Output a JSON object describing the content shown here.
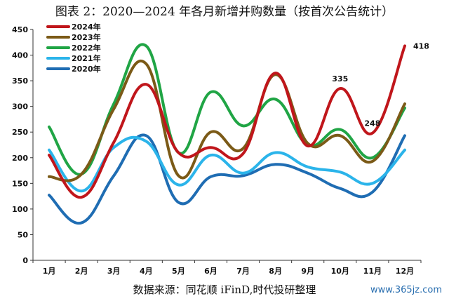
{
  "title": "图表 2：2020—2024 年各月新增并购数量（按首次公告统计）",
  "source": "数据来源：同花顺 iFinD,时代投研整理",
  "watermark": "www.365jz.com",
  "chart_data": {
    "type": "line",
    "title": "图表 2：2020—2024 年各月新增并购数量（按首次公告统计）",
    "xlabel": "",
    "ylabel": "",
    "categories": [
      "1月",
      "2月",
      "3月",
      "4月",
      "5月",
      "6月",
      "7月",
      "8月",
      "9月",
      "10月",
      "11月",
      "12月"
    ],
    "ylim": [
      0,
      450
    ],
    "yticks": [
      0,
      50,
      100,
      150,
      200,
      250,
      300,
      350,
      400,
      450
    ],
    "grid": false,
    "legend_position": "top-left",
    "series": [
      {
        "name": "2024年",
        "color": "#c0161b",
        "values": [
          205,
          123,
          230,
          343,
          210,
          220,
          208,
          365,
          223,
          335,
          248,
          418
        ]
      },
      {
        "name": "2023年",
        "color": "#7b5a17",
        "values": [
          163,
          168,
          295,
          383,
          165,
          250,
          218,
          362,
          228,
          243,
          193,
          305
        ]
      },
      {
        "name": "2022年",
        "color": "#20a545",
        "values": [
          260,
          168,
          305,
          418,
          210,
          328,
          262,
          314,
          225,
          255,
          200,
          297
        ]
      },
      {
        "name": "2021年",
        "color": "#2bb4ea",
        "values": [
          215,
          135,
          220,
          232,
          147,
          205,
          170,
          210,
          182,
          172,
          150,
          215
        ]
      },
      {
        "name": "2020年",
        "color": "#1f6db3",
        "values": [
          127,
          73,
          165,
          243,
          113,
          163,
          165,
          187,
          170,
          140,
          133,
          243
        ]
      }
    ],
    "annotations": [
      {
        "series": "2024年",
        "category": "10月",
        "label": "335"
      },
      {
        "series": "2024年",
        "category": "11月",
        "label": "248"
      },
      {
        "series": "2024年",
        "category": "12月",
        "label": "418"
      }
    ]
  }
}
